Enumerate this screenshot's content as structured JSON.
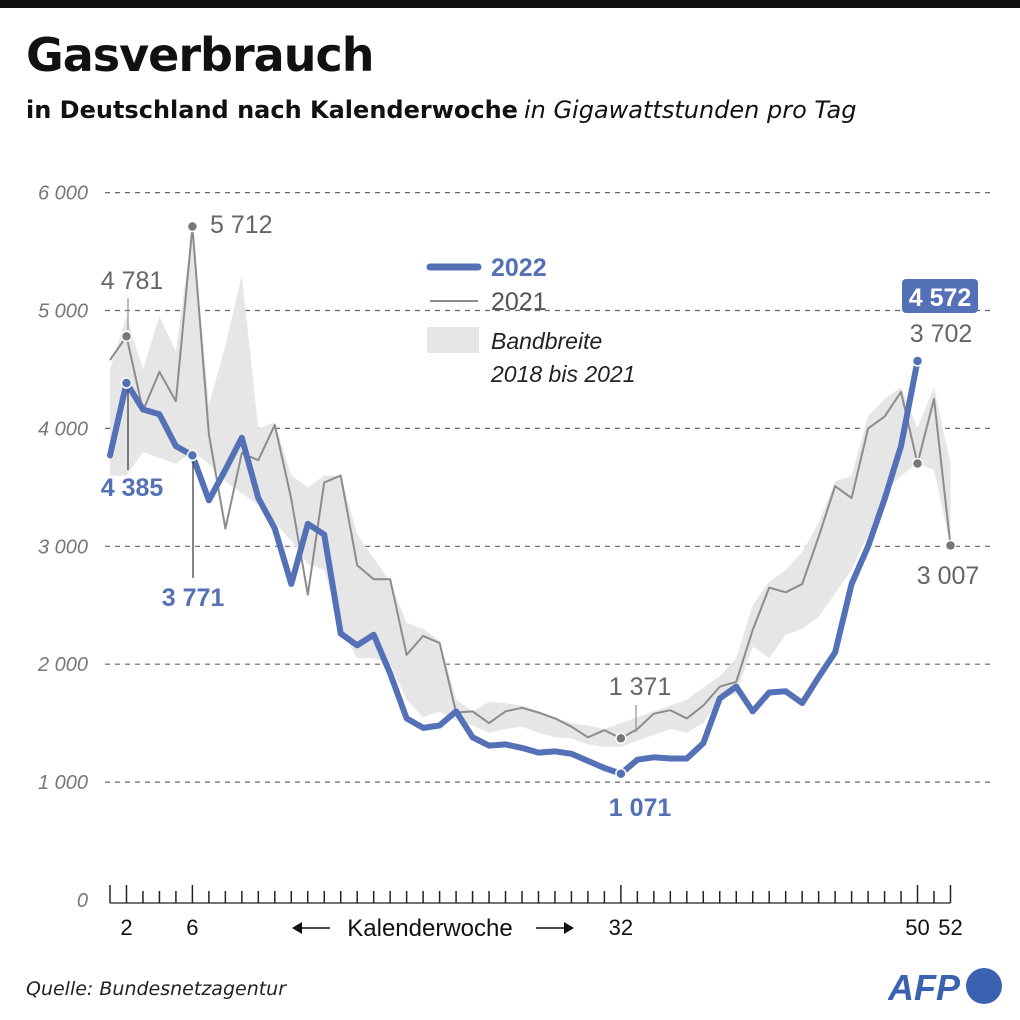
{
  "header": {
    "title": "Gasverbrauch",
    "subtitle_bold": "in Deutschland  nach Kalenderwoche",
    "subtitle_italic": "in Gigawattstunden pro Tag"
  },
  "footer": {
    "source": "Quelle: Bundesnetzagentur",
    "logo_text": "AFP"
  },
  "colors": {
    "series_2022": "#5470b6",
    "series_2021": "#8c8c8c",
    "band": "#e6e6e6",
    "text": "#111111"
  },
  "chart_data": {
    "type": "line",
    "title": "Gasverbrauch",
    "xlabel": "Kalenderwoche",
    "ylabel": "",
    "xlim": [
      1,
      52
    ],
    "ylim": [
      0,
      6000
    ],
    "grid": true,
    "yticks": [
      {
        "value": 0,
        "label": "0"
      },
      {
        "value": 1000,
        "label": "1 000"
      },
      {
        "value": 2000,
        "label": "2 000"
      },
      {
        "value": 3000,
        "label": "3 000"
      },
      {
        "value": 4000,
        "label": "4 000"
      },
      {
        "value": 5000,
        "label": "5 000"
      },
      {
        "value": 6000,
        "label": "6 000"
      }
    ],
    "xtick_labels": [
      {
        "x": 2,
        "label": "2"
      },
      {
        "x": 6,
        "label": "6"
      },
      {
        "x": 32,
        "label": "32"
      },
      {
        "x": 50,
        "label": "50"
      },
      {
        "x": 52,
        "label": "52"
      }
    ],
    "legend": {
      "position": "top-center",
      "entries": [
        {
          "label": "2022",
          "style": "thick-line"
        },
        {
          "label": "2021",
          "style": "thin-line"
        },
        {
          "label": "Bandbreite\n2018 bis 2021",
          "style": "band"
        }
      ]
    },
    "series": [
      {
        "name": "2022",
        "x": [
          1,
          2,
          3,
          4,
          5,
          6,
          7,
          8,
          9,
          10,
          11,
          12,
          13,
          14,
          15,
          16,
          17,
          18,
          19,
          20,
          21,
          22,
          23,
          24,
          25,
          26,
          27,
          28,
          29,
          30,
          31,
          32,
          33,
          34,
          35,
          36,
          37,
          38,
          39,
          40,
          41,
          42,
          43,
          44,
          45,
          46,
          47,
          48,
          49,
          50
        ],
        "values": [
          3771,
          4385,
          4160,
          4120,
          3850,
          3771,
          3390,
          3650,
          3920,
          3410,
          3150,
          2680,
          3190,
          3100,
          2260,
          2160,
          2250,
          1920,
          1540,
          1460,
          1480,
          1600,
          1380,
          1310,
          1320,
          1290,
          1250,
          1260,
          1240,
          1180,
          1120,
          1071,
          1190,
          1210,
          1200,
          1200,
          1330,
          1710,
          1810,
          1600,
          1760,
          1770,
          1670,
          1890,
          2100,
          2680,
          3000,
          3400,
          3850,
          4572
        ]
      },
      {
        "name": "2021",
        "x": [
          1,
          2,
          3,
          4,
          5,
          6,
          7,
          8,
          9,
          10,
          11,
          12,
          13,
          14,
          15,
          16,
          17,
          18,
          19,
          20,
          21,
          22,
          23,
          24,
          25,
          26,
          27,
          28,
          29,
          30,
          31,
          32,
          33,
          34,
          35,
          36,
          37,
          38,
          39,
          40,
          41,
          42,
          43,
          44,
          45,
          46,
          47,
          48,
          49,
          50,
          51,
          52
        ],
        "values": [
          4580,
          4781,
          4150,
          4480,
          4230,
          5712,
          3950,
          3150,
          3790,
          3730,
          4030,
          3400,
          2590,
          3540,
          3600,
          2840,
          2720,
          2720,
          2080,
          2240,
          2180,
          1590,
          1600,
          1500,
          1600,
          1630,
          1590,
          1540,
          1470,
          1380,
          1440,
          1371,
          1450,
          1580,
          1610,
          1540,
          1650,
          1810,
          1850,
          2290,
          2650,
          2610,
          2680,
          3080,
          3510,
          3410,
          4000,
          4100,
          4310,
          3702,
          4250,
          3007
        ]
      },
      {
        "name": "Bandbreite 2018 bis 2021",
        "x": [
          1,
          2,
          3,
          4,
          5,
          6,
          7,
          8,
          9,
          10,
          11,
          12,
          13,
          14,
          15,
          16,
          17,
          18,
          19,
          20,
          21,
          22,
          23,
          24,
          25,
          26,
          27,
          28,
          29,
          30,
          31,
          32,
          33,
          34,
          35,
          36,
          37,
          38,
          39,
          40,
          41,
          42,
          43,
          44,
          45,
          46,
          47,
          48,
          49,
          50,
          51,
          52
        ],
        "low": [
          3600,
          3600,
          3800,
          3750,
          3700,
          3800,
          3700,
          3550,
          3450,
          3350,
          3200,
          3050,
          2850,
          2800,
          2300,
          2050,
          2050,
          2000,
          1700,
          1550,
          1600,
          1520,
          1480,
          1420,
          1450,
          1470,
          1420,
          1380,
          1370,
          1320,
          1300,
          1300,
          1350,
          1400,
          1450,
          1420,
          1500,
          1700,
          1750,
          2150,
          2050,
          2250,
          2300,
          2400,
          2600,
          2800,
          3100,
          3450,
          3600,
          3700,
          3650,
          3000
        ],
        "high": [
          4500,
          4950,
          4500,
          4950,
          4650,
          5700,
          4200,
          4700,
          5300,
          4000,
          4050,
          3600,
          3500,
          3600,
          3600,
          3100,
          2900,
          2700,
          2350,
          2300,
          2200,
          1700,
          1600,
          1680,
          1670,
          1650,
          1600,
          1550,
          1500,
          1480,
          1450,
          1500,
          1550,
          1600,
          1650,
          1700,
          1800,
          1900,
          2050,
          2500,
          2700,
          2800,
          2950,
          3200,
          3550,
          3600,
          4100,
          4250,
          4350,
          4000,
          4350,
          3700
        ]
      }
    ],
    "annotations": [
      {
        "series": "2021",
        "x": 2,
        "value": 4781,
        "label": "4 781"
      },
      {
        "series": "2021",
        "x": 6,
        "value": 5712,
        "label": "5 712"
      },
      {
        "series": "2022",
        "x": 2,
        "value": 4385,
        "label": "4 385"
      },
      {
        "series": "2022",
        "x": 6,
        "value": 3771,
        "label": "3 771"
      },
      {
        "series": "2021",
        "x": 32,
        "value": 1371,
        "label": "1 371"
      },
      {
        "series": "2022",
        "x": 32,
        "value": 1071,
        "label": "1 071"
      },
      {
        "series": "2022",
        "x": 50,
        "value": 4572,
        "label": "4 572",
        "highlight": true
      },
      {
        "series": "2021",
        "x": 50,
        "value": 3702,
        "label": "3 702"
      },
      {
        "series": "2021",
        "x": 52,
        "value": 3007,
        "label": "3 007"
      }
    ]
  }
}
